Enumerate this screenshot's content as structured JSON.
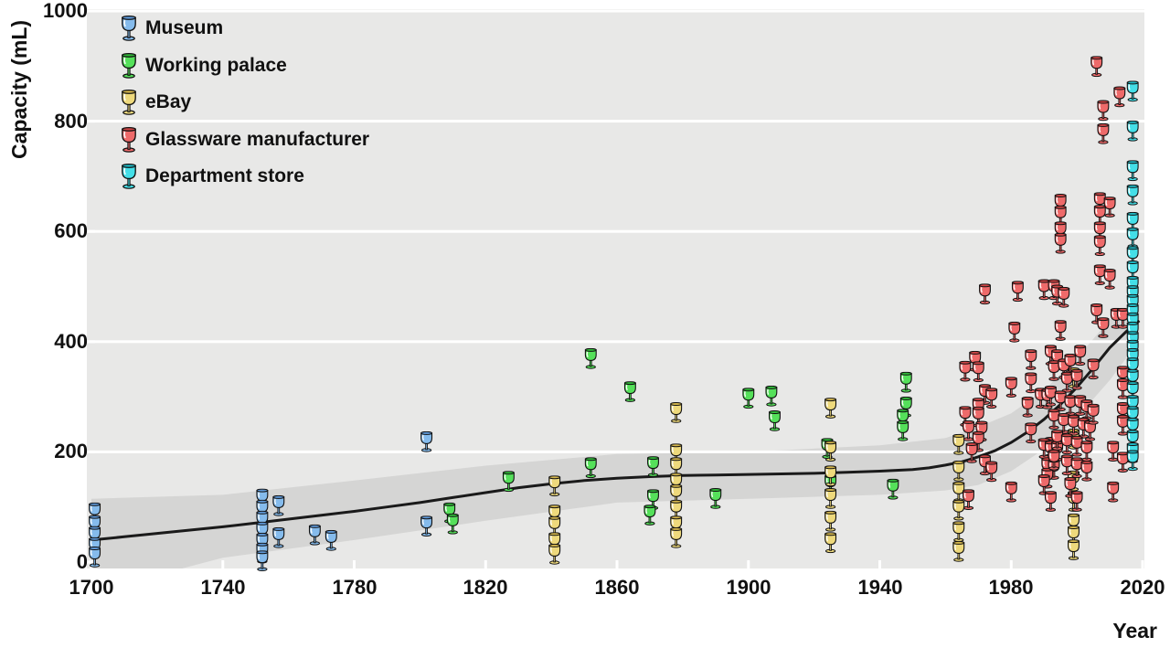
{
  "figure": {
    "kind": "scatter plot of wine glass capacity by year",
    "background": "#ffffff",
    "plot_background": "#e8e8e7",
    "band_color": "#d5d5d4",
    "trend_color": "#1a1a1a",
    "gridline_color": "#ffffff"
  },
  "chart_data": {
    "type": "scatter",
    "title": "",
    "xlabel": "Year",
    "ylabel": "Capacity (mL)",
    "x_ticks": [
      "1700",
      "1740",
      "1780",
      "1820",
      "1860",
      "1900",
      "1940",
      "1980",
      "2020"
    ],
    "x_tick_values": [
      1700,
      1740,
      1780,
      1820,
      1860,
      1900,
      1940,
      1980,
      2020
    ],
    "y_ticks": [
      "0",
      "200",
      "400",
      "600",
      "800",
      "1000"
    ],
    "y_tick_values": [
      0,
      200,
      400,
      600,
      800,
      1000
    ],
    "x_range": [
      1700,
      2020
    ],
    "y_range": [
      0,
      1000
    ],
    "grid": "horizontal white lines every 200 mL",
    "legend_position": "top-left inside plot",
    "series": [
      {
        "name": "Museum",
        "color": "#85bbec",
        "rim": "#5e97d6",
        "points": [
          [
            1701,
            95
          ],
          [
            1701,
            72
          ],
          [
            1701,
            52
          ],
          [
            1701,
            32
          ],
          [
            1701,
            15
          ],
          [
            1752,
            120
          ],
          [
            1752,
            100
          ],
          [
            1752,
            80
          ],
          [
            1752,
            60
          ],
          [
            1752,
            40
          ],
          [
            1752,
            22
          ],
          [
            1752,
            8
          ],
          [
            1757,
            108
          ],
          [
            1757,
            50
          ],
          [
            1768,
            55
          ],
          [
            1773,
            45
          ],
          [
            1802,
            224
          ],
          [
            1802,
            71
          ]
        ]
      },
      {
        "name": "Working palace",
        "color": "#55e05a",
        "rim": "#2fb637",
        "points": [
          [
            1809,
            95
          ],
          [
            1810,
            75
          ],
          [
            1827,
            152
          ],
          [
            1852,
            375
          ],
          [
            1852,
            177
          ],
          [
            1864,
            315
          ],
          [
            1871,
            179
          ],
          [
            1871,
            119
          ],
          [
            1870,
            91
          ],
          [
            1890,
            121
          ],
          [
            1900,
            303
          ],
          [
            1907,
            307
          ],
          [
            1908,
            262
          ],
          [
            1924,
            212
          ],
          [
            1925,
            146
          ],
          [
            1948,
            332
          ],
          [
            1948,
            287
          ],
          [
            1947,
            265
          ],
          [
            1947,
            244
          ],
          [
            1944,
            138
          ]
        ]
      },
      {
        "name": "eBay",
        "color": "#eed97c",
        "rim": "#d2b44c",
        "points": [
          [
            1841,
            144
          ],
          [
            1841,
            91
          ],
          [
            1841,
            70
          ],
          [
            1841,
            41
          ],
          [
            1841,
            20
          ],
          [
            1878,
            277
          ],
          [
            1878,
            202
          ],
          [
            1878,
            177
          ],
          [
            1878,
            149
          ],
          [
            1878,
            128
          ],
          [
            1878,
            100
          ],
          [
            1878,
            71
          ],
          [
            1878,
            50
          ],
          [
            1925,
            285
          ],
          [
            1925,
            207
          ],
          [
            1925,
            162
          ],
          [
            1925,
            121
          ],
          [
            1925,
            80
          ],
          [
            1925,
            41
          ],
          [
            1964,
            219
          ],
          [
            1964,
            171
          ],
          [
            1964,
            133
          ],
          [
            1964,
            100
          ],
          [
            1964,
            61
          ],
          [
            1964,
            25
          ],
          [
            1999,
            340
          ],
          [
            1999,
            229
          ],
          [
            1999,
            153
          ],
          [
            1999,
            116
          ],
          [
            1999,
            75
          ],
          [
            1999,
            53
          ],
          [
            1999,
            28
          ]
        ]
      },
      {
        "name": "Glassware manufacturer",
        "color": "#ee6a6a",
        "rim": "#cc4444",
        "points": [
          [
            1969,
            370
          ],
          [
            1966,
            352
          ],
          [
            1970,
            351
          ],
          [
            1972,
            310
          ],
          [
            1974,
            303
          ],
          [
            1970,
            285
          ],
          [
            1966,
            270
          ],
          [
            1970,
            269
          ],
          [
            1967,
            244
          ],
          [
            1971,
            243
          ],
          [
            1970,
            224
          ],
          [
            1968,
            204
          ],
          [
            1972,
            182
          ],
          [
            1974,
            170
          ],
          [
            1967,
            119
          ],
          [
            1972,
            492
          ],
          [
            1981,
            423
          ],
          [
            1980,
            323
          ],
          [
            1982,
            497
          ],
          [
            1986,
            373
          ],
          [
            1986,
            331
          ],
          [
            1985,
            287
          ],
          [
            1986,
            240
          ],
          [
            1980,
            133
          ],
          [
            1989,
            303
          ],
          [
            1991,
            302
          ],
          [
            1990,
            500
          ],
          [
            1993,
            500
          ],
          [
            1994,
            490
          ],
          [
            1992,
            214
          ],
          [
            1990,
            212
          ],
          [
            1992,
            207
          ],
          [
            1994,
            207
          ],
          [
            1991,
            177
          ],
          [
            1993,
            174
          ],
          [
            1991,
            158
          ],
          [
            1990,
            146
          ],
          [
            1992,
            116
          ],
          [
            1995,
            655
          ],
          [
            1995,
            634
          ],
          [
            1995,
            605
          ],
          [
            1995,
            584
          ],
          [
            1995,
            426
          ],
          [
            1996,
            486
          ],
          [
            1992,
            381
          ],
          [
            1994,
            373
          ],
          [
            1993,
            353
          ],
          [
            1996,
            356
          ],
          [
            1998,
            365
          ],
          [
            2001,
            381
          ],
          [
            1997,
            332
          ],
          [
            2000,
            337
          ],
          [
            1992,
            307
          ],
          [
            1995,
            298
          ],
          [
            1998,
            290
          ],
          [
            2001,
            290
          ],
          [
            2003,
            282
          ],
          [
            1993,
            265
          ],
          [
            1996,
            257
          ],
          [
            1999,
            254
          ],
          [
            2002,
            249
          ],
          [
            2004,
            244
          ],
          [
            1994,
            227
          ],
          [
            1997,
            220
          ],
          [
            2000,
            216
          ],
          [
            2003,
            207
          ],
          [
            1993,
            191
          ],
          [
            1997,
            182
          ],
          [
            2000,
            177
          ],
          [
            2003,
            171
          ],
          [
            1998,
            141
          ],
          [
            2000,
            116
          ],
          [
            2006,
            905
          ],
          [
            2013,
            850
          ],
          [
            2008,
            825
          ],
          [
            2008,
            783
          ],
          [
            2007,
            658
          ],
          [
            2010,
            650
          ],
          [
            2007,
            635
          ],
          [
            2007,
            605
          ],
          [
            2007,
            580
          ],
          [
            2007,
            527
          ],
          [
            2010,
            519
          ],
          [
            2006,
            456
          ],
          [
            2012,
            448
          ],
          [
            2014,
            448
          ],
          [
            2008,
            431
          ],
          [
            2005,
            356
          ],
          [
            2005,
            274
          ],
          [
            2014,
            343
          ],
          [
            2014,
            320
          ],
          [
            2014,
            277
          ],
          [
            2014,
            254
          ],
          [
            2011,
            207
          ],
          [
            2014,
            187
          ],
          [
            2011,
            133
          ]
        ]
      },
      {
        "name": "Department store",
        "color": "#44dfe8",
        "rim": "#1fb6c2",
        "points": [
          [
            2017,
            860
          ],
          [
            2017,
            788
          ],
          [
            2017,
            716
          ],
          [
            2017,
            672
          ],
          [
            2017,
            622
          ],
          [
            2017,
            594
          ],
          [
            2017,
            560
          ],
          [
            2017,
            534
          ],
          [
            2017,
            506
          ],
          [
            2017,
            489
          ],
          [
            2017,
            473
          ],
          [
            2017,
            456
          ],
          [
            2017,
            440
          ],
          [
            2017,
            423
          ],
          [
            2017,
            406
          ],
          [
            2017,
            390
          ],
          [
            2017,
            375
          ],
          [
            2017,
            358
          ],
          [
            2017,
            337
          ],
          [
            2017,
            315
          ],
          [
            2017,
            290
          ],
          [
            2017,
            270
          ],
          [
            2017,
            249
          ],
          [
            2017,
            227
          ],
          [
            2017,
            204
          ],
          [
            2017,
            190
          ]
        ]
      }
    ],
    "trend": {
      "description": "smoothed mean capacity with confidence band",
      "points": [
        [
          1700,
          40
        ],
        [
          1710,
          46
        ],
        [
          1720,
          52
        ],
        [
          1730,
          58
        ],
        [
          1740,
          64
        ],
        [
          1750,
          71
        ],
        [
          1760,
          78
        ],
        [
          1770,
          85
        ],
        [
          1780,
          92
        ],
        [
          1790,
          100
        ],
        [
          1800,
          108
        ],
        [
          1810,
          117
        ],
        [
          1820,
          126
        ],
        [
          1830,
          135
        ],
        [
          1840,
          142
        ],
        [
          1850,
          148
        ],
        [
          1860,
          152
        ],
        [
          1870,
          155
        ],
        [
          1880,
          157
        ],
        [
          1890,
          158
        ],
        [
          1900,
          159
        ],
        [
          1910,
          160
        ],
        [
          1920,
          161
        ],
        [
          1930,
          163
        ],
        [
          1940,
          165
        ],
        [
          1950,
          168
        ],
        [
          1955,
          171
        ],
        [
          1960,
          176
        ],
        [
          1965,
          182
        ],
        [
          1970,
          191
        ],
        [
          1975,
          202
        ],
        [
          1980,
          217
        ],
        [
          1985,
          236
        ],
        [
          1990,
          259
        ],
        [
          1995,
          286
        ],
        [
          2000,
          317
        ],
        [
          2005,
          352
        ],
        [
          2010,
          389
        ],
        [
          2015,
          418
        ],
        [
          2019,
          438
        ]
      ]
    },
    "band": {
      "points_year_lo_hi": [
        [
          1700,
          -55,
          115
        ],
        [
          1740,
          8,
          122
        ],
        [
          1780,
          40,
          148
        ],
        [
          1820,
          75,
          175
        ],
        [
          1860,
          108,
          196
        ],
        [
          1900,
          115,
          200
        ],
        [
          1940,
          122,
          212
        ],
        [
          1960,
          130,
          225
        ],
        [
          1970,
          140,
          245
        ],
        [
          1980,
          165,
          270
        ],
        [
          1990,
          205,
          312
        ],
        [
          2000,
          262,
          370
        ],
        [
          2010,
          330,
          440
        ],
        [
          2019,
          402,
          474
        ]
      ]
    }
  }
}
